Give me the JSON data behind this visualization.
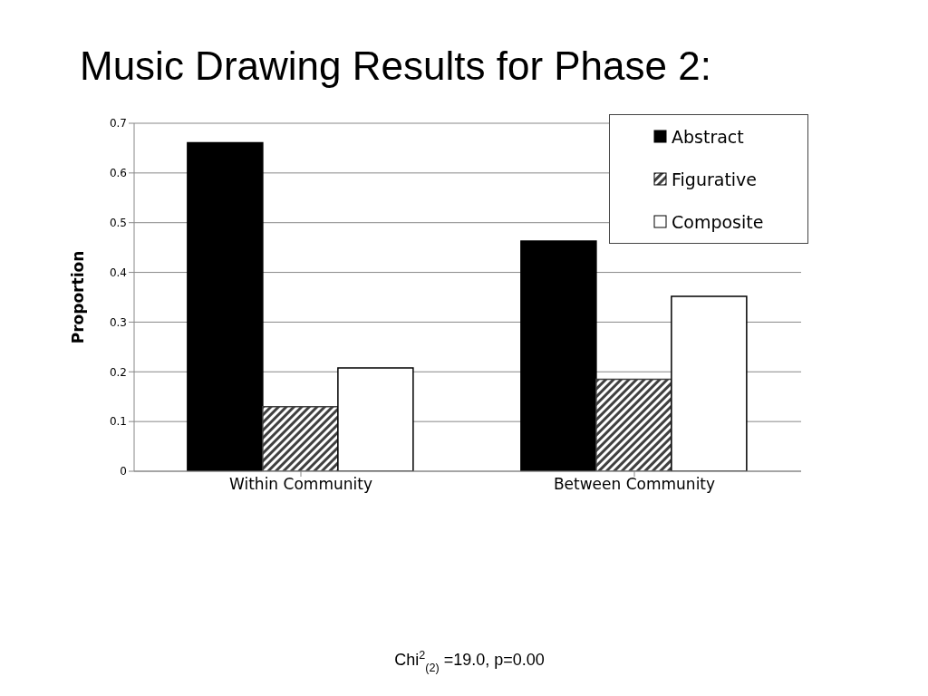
{
  "chart_data": {
    "type": "bar",
    "title": "Music Drawing Results for Phase 2:",
    "ylabel": "Proportion",
    "categories": [
      "Within Community",
      "Between Community"
    ],
    "series": [
      {
        "name": "Abstract",
        "color": "#000000",
        "values": [
          0.661,
          0.463
        ]
      },
      {
        "name": "Figurative",
        "color": "#404040",
        "values": [
          0.13,
          0.185
        ]
      },
      {
        "name": "Composite",
        "color": "#ffffff",
        "values": [
          0.208,
          0.352
        ]
      }
    ],
    "ylim": [
      0,
      0.7
    ],
    "yticks": [
      0,
      0.1,
      0.2,
      0.3,
      0.4,
      0.5,
      0.6,
      0.7
    ],
    "grid": "y",
    "legend": "top right",
    "annotations": [
      "Chi$^{2}$$_{(2)}$ =19.0, p=0.00"
    ]
  }
}
